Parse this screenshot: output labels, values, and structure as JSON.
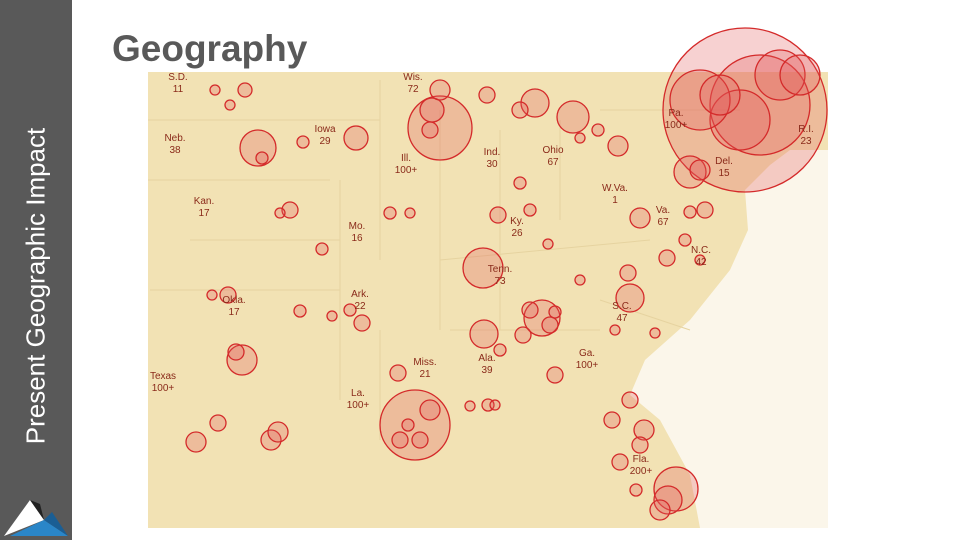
{
  "sidebar": {
    "title": "Present Geographic Impact"
  },
  "title": "Geography",
  "map": {
    "labels": [
      {
        "name": "S.D.",
        "count": 11
      },
      {
        "name": "Neb.",
        "count": 38
      },
      {
        "name": "Kan.",
        "count": 17
      },
      {
        "name": "Okla.",
        "count": 17
      },
      {
        "name": "Texas",
        "count": "100+"
      },
      {
        "name": "Iowa",
        "count": 29
      },
      {
        "name": "Mo.",
        "count": 16
      },
      {
        "name": "Ark.",
        "count": 22
      },
      {
        "name": "La.",
        "count": "100+"
      },
      {
        "name": "Miss.",
        "count": 21
      },
      {
        "name": "Ala.",
        "count": 39
      },
      {
        "name": "Tenn.",
        "count": 73
      },
      {
        "name": "Ky.",
        "count": 26
      },
      {
        "name": "Ill.",
        "count": "100+"
      },
      {
        "name": "Ind.",
        "count": 30
      },
      {
        "name": "Ohio",
        "count": 67
      },
      {
        "name": "W.Va.",
        "count": 1
      },
      {
        "name": "Va.",
        "count": 67
      },
      {
        "name": "N.C.",
        "count": 42
      },
      {
        "name": "S.C.",
        "count": 47
      },
      {
        "name": "Ga.",
        "count": "100+"
      },
      {
        "name": "Fla.",
        "count": "200+"
      },
      {
        "name": "Pa.",
        "count": "100+"
      },
      {
        "name": "R.I.",
        "count": 23
      },
      {
        "name": "Del.",
        "count": 15
      },
      {
        "name": "Wis.",
        "count": 72
      }
    ]
  }
}
